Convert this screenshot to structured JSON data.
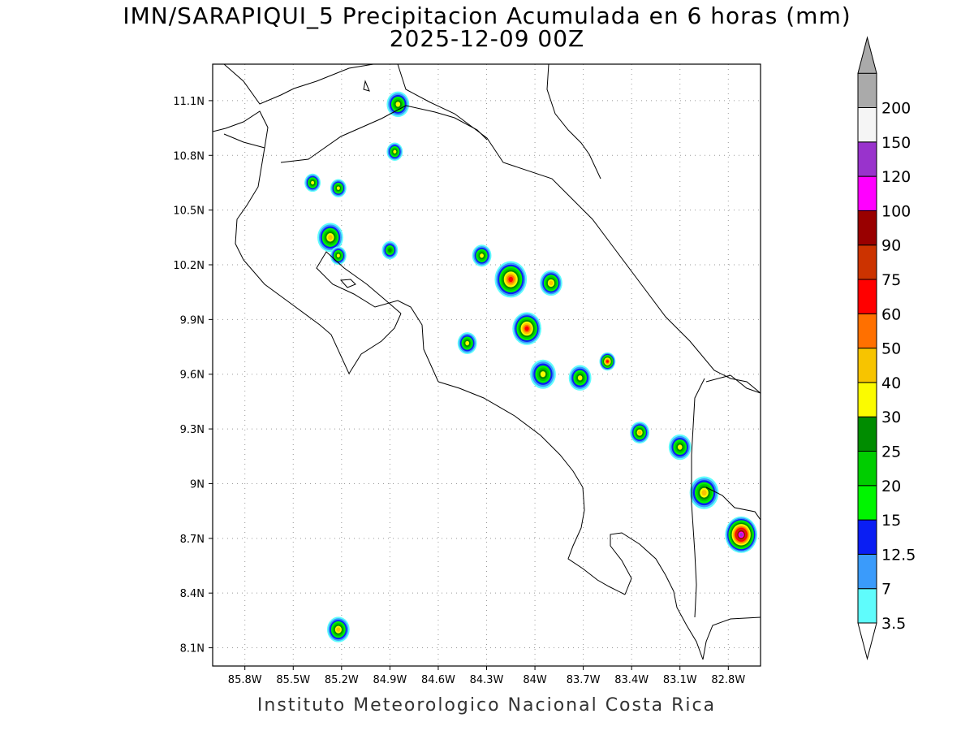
{
  "header": {
    "title_line1": "IMN/SARAPIQUI_5 Precipitacion Acumulada en 6 horas (mm)",
    "title_line2": "2025-12-09 00Z"
  },
  "footer": {
    "credit": "Instituto Meteorologico Nacional Costa Rica"
  },
  "map": {
    "region": "Costa Rica",
    "lon_range": [
      -86.0,
      -82.6
    ],
    "lat_range": [
      8.0,
      11.3
    ],
    "grid": "dotted",
    "x_ticks": [
      {
        "value": -85.8,
        "label": "85.8W"
      },
      {
        "value": -85.5,
        "label": "85.5W"
      },
      {
        "value": -85.2,
        "label": "85.2W"
      },
      {
        "value": -84.9,
        "label": "84.9W"
      },
      {
        "value": -84.6,
        "label": "84.6W"
      },
      {
        "value": -84.3,
        "label": "84.3W"
      },
      {
        "value": -84.0,
        "label": "84W"
      },
      {
        "value": -83.7,
        "label": "83.7W"
      },
      {
        "value": -83.4,
        "label": "83.4W"
      },
      {
        "value": -83.1,
        "label": "83.1W"
      },
      {
        "value": -82.8,
        "label": "82.8W"
      }
    ],
    "y_ticks": [
      {
        "value": 11.1,
        "label": "11.1N"
      },
      {
        "value": 10.8,
        "label": "10.8N"
      },
      {
        "value": 10.5,
        "label": "10.5N"
      },
      {
        "value": 10.2,
        "label": "10.2N"
      },
      {
        "value": 9.9,
        "label": "9.9N"
      },
      {
        "value": 9.6,
        "label": "9.6N"
      },
      {
        "value": 9.3,
        "label": "9.3N"
      },
      {
        "value": 9.0,
        "label": "9N"
      },
      {
        "value": 8.7,
        "label": "8.7N"
      },
      {
        "value": 8.4,
        "label": "8.4N"
      },
      {
        "value": 8.1,
        "label": "8.1N"
      }
    ]
  },
  "colorbar": {
    "units": "mm",
    "levels": [
      {
        "label": "3.5",
        "color": "#5ffcfc"
      },
      {
        "label": "7",
        "color": "#3a9bfb"
      },
      {
        "label": "12.5",
        "color": "#0a1ef3"
      },
      {
        "label": "15",
        "color": "#00f500"
      },
      {
        "label": "20",
        "color": "#00cd00"
      },
      {
        "label": "25",
        "color": "#008c00"
      },
      {
        "label": "30",
        "color": "#fbfb00"
      },
      {
        "label": "40",
        "color": "#f7c400"
      },
      {
        "label": "50",
        "color": "#ff7000"
      },
      {
        "label": "60",
        "color": "#ff0000"
      },
      {
        "label": "75",
        "color": "#cc3300"
      },
      {
        "label": "90",
        "color": "#990000"
      },
      {
        "label": "100",
        "color": "#ff00ff"
      },
      {
        "label": "120",
        "color": "#9933cc"
      },
      {
        "label": "150",
        "color": "#f5f5f5"
      },
      {
        "label": "200",
        "color": "#aaaaaa"
      }
    ]
  },
  "precip_cells": [
    {
      "lon": -84.85,
      "lat": 11.08,
      "r": 0.07,
      "max_mm": 30
    },
    {
      "lon": -84.87,
      "lat": 10.82,
      "r": 0.05,
      "max_mm": 30
    },
    {
      "lon": -85.38,
      "lat": 10.65,
      "r": 0.05,
      "max_mm": 30
    },
    {
      "lon": -85.22,
      "lat": 10.62,
      "r": 0.05,
      "max_mm": 30
    },
    {
      "lon": -85.27,
      "lat": 10.35,
      "r": 0.08,
      "max_mm": 40
    },
    {
      "lon": -85.22,
      "lat": 10.25,
      "r": 0.05,
      "max_mm": 30
    },
    {
      "lon": -84.9,
      "lat": 10.28,
      "r": 0.05,
      "max_mm": 25
    },
    {
      "lon": -84.33,
      "lat": 10.25,
      "r": 0.06,
      "max_mm": 30
    },
    {
      "lon": -84.15,
      "lat": 10.12,
      "r": 0.1,
      "max_mm": 60
    },
    {
      "lon": -84.05,
      "lat": 9.85,
      "r": 0.09,
      "max_mm": 60
    },
    {
      "lon": -83.9,
      "lat": 10.1,
      "r": 0.07,
      "max_mm": 40
    },
    {
      "lon": -84.42,
      "lat": 9.77,
      "r": 0.06,
      "max_mm": 30
    },
    {
      "lon": -83.95,
      "lat": 9.6,
      "r": 0.08,
      "max_mm": 30
    },
    {
      "lon": -83.72,
      "lat": 9.58,
      "r": 0.07,
      "max_mm": 30
    },
    {
      "lon": -83.55,
      "lat": 9.67,
      "r": 0.05,
      "max_mm": 60
    },
    {
      "lon": -83.35,
      "lat": 9.28,
      "r": 0.06,
      "max_mm": 40
    },
    {
      "lon": -83.1,
      "lat": 9.2,
      "r": 0.07,
      "max_mm": 30
    },
    {
      "lon": -82.95,
      "lat": 8.95,
      "r": 0.09,
      "max_mm": 40
    },
    {
      "lon": -82.72,
      "lat": 8.72,
      "r": 0.1,
      "max_mm": 120
    },
    {
      "lon": -85.22,
      "lat": 8.2,
      "r": 0.07,
      "max_mm": 40
    }
  ]
}
